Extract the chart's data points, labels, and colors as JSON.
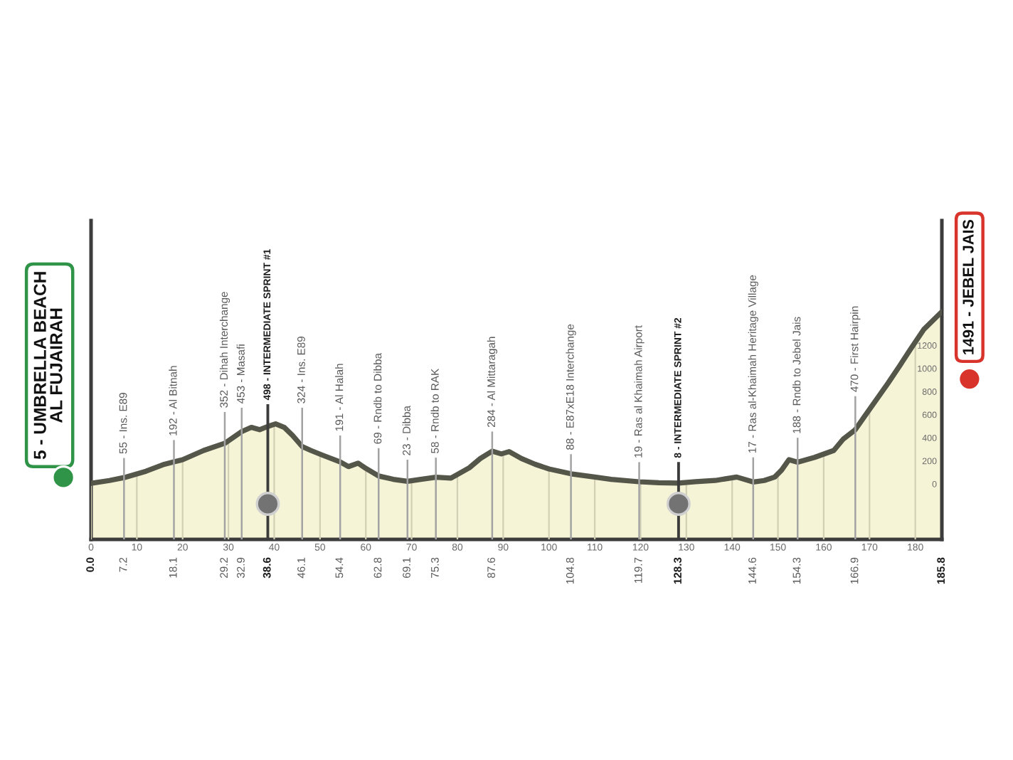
{
  "chart_data": {
    "type": "area",
    "color": "#f6f4d7",
    "x": [
      0,
      4,
      7.2,
      12,
      16,
      18.1,
      20,
      24.6,
      29.2,
      32.9,
      35,
      36.8,
      38.6,
      40.3,
      42.2,
      44,
      46.1,
      48,
      50.5,
      54.4,
      56.2,
      58.3,
      59.8,
      62.8,
      66,
      69.1,
      72,
      75.3,
      78.6,
      82.6,
      85,
      87.6,
      89.6,
      91.3,
      94,
      97,
      100,
      104.8,
      110,
      113.6,
      119.7,
      124,
      128.3,
      132,
      136.3,
      141,
      144.6,
      147,
      149.3,
      150.8,
      152.4,
      154.3,
      158,
      162.2,
      164.3,
      166.9,
      169,
      171.5,
      174,
      176.7,
      179,
      181.9,
      185.8
    ],
    "values": [
      5,
      30,
      55,
      110,
      170,
      192,
      210,
      290,
      352,
      453,
      490,
      470,
      498,
      520,
      490,
      420,
      324,
      290,
      250,
      191,
      150,
      180,
      140,
      69,
      40,
      23,
      40,
      58,
      50,
      140,
      220,
      284,
      260,
      280,
      220,
      170,
      130,
      88,
      60,
      40,
      19,
      10,
      8,
      20,
      30,
      60,
      17,
      30,
      60,
      120,
      210,
      188,
      230,
      290,
      390,
      470,
      590,
      730,
      870,
      1030,
      1170,
      1340,
      1491
    ],
    "xlim": [
      0,
      185.8
    ],
    "xticks": [
      0,
      10,
      20,
      30,
      40,
      50,
      60,
      70,
      80,
      90,
      100,
      110,
      120,
      130,
      140,
      150,
      160,
      170,
      180
    ],
    "x2lim": [
      0,
      185.8
    ],
    "x2ticks": [
      {
        "value": 0,
        "label": "0.0"
      },
      7.2,
      18.1,
      29.2,
      32.9,
      38.6,
      46.1,
      54.4,
      62.8,
      69.1,
      75.3,
      87.6,
      104.8,
      119.7,
      128.3,
      144.6,
      154.3,
      166.9,
      185.8
    ],
    "ylim": [
      -480,
      2280
    ],
    "yticks": [
      0,
      200,
      400,
      600,
      800,
      1000,
      1200
    ],
    "grid": "x",
    "bands": [
      {
        "axis": "y",
        "from": -480,
        "to": 0,
        "color": "#f6f4d7"
      }
    ],
    "ref_lines": [
      {
        "axis": "x",
        "value": 7.2,
        "label": "55 - Ins. E89",
        "color": "#a3a3a3"
      },
      {
        "axis": "x",
        "value": 18.1,
        "label": "192 - Al Bitnah",
        "color": "#a3a3a3"
      },
      {
        "axis": "x",
        "value": 29.2,
        "label": "352 - Dihah Interchange",
        "color": "#a3a3a3"
      },
      {
        "axis": "x",
        "value": 32.9,
        "label": "453 - Masafi",
        "color": "#a3a3a3"
      },
      {
        "axis": "x",
        "value": 38.6,
        "label": "498 - INTERMEDIATE SPRINT #1",
        "color": "#3b3b3b"
      },
      {
        "axis": "x",
        "value": 46.1,
        "label": "324 - Ins. E89",
        "color": "#a3a3a3"
      },
      {
        "axis": "x",
        "value": 54.4,
        "label": "191 - Al Halah",
        "color": "#a3a3a3"
      },
      {
        "axis": "x",
        "value": 62.8,
        "label": "69 - Rndb to Dibba",
        "color": "#a3a3a3"
      },
      {
        "axis": "x",
        "value": 69.1,
        "label": "23 - Dibba",
        "color": "#a3a3a3"
      },
      {
        "axis": "x",
        "value": 75.3,
        "label": "58 - Rndb to RAK",
        "color": "#a3a3a3"
      },
      {
        "axis": "x",
        "value": 87.6,
        "label": "284 - Al Mittaragah",
        "color": "#a3a3a3"
      },
      {
        "axis": "x",
        "value": 104.8,
        "label": "88 - E87xE18 Interchange",
        "color": "#a3a3a3"
      },
      {
        "axis": "x",
        "value": 119.7,
        "label": "19 - Ras al Khaimah Airport",
        "color": "#a3a3a3"
      },
      {
        "axis": "x",
        "value": 128.3,
        "label": "8 - INTERMEDIATE SPRINT #2",
        "color": "#3b3b3b"
      },
      {
        "axis": "x",
        "value": 144.6,
        "label": "17 - Ras al-Khaimah Heritage Village",
        "color": "#a3a3a3"
      },
      {
        "axis": "x",
        "value": 154.3,
        "label": "188 - Rndb to Jebel Jais",
        "color": "#a3a3a3"
      },
      {
        "axis": "x",
        "value": 166.9,
        "label": "470 - First Hairpin",
        "color": "#a3a3a3"
      }
    ],
    "annotations": [
      {
        "text": "5 - UMBRELLA BEACH\nAL FUJAIRAH",
        "x": 0,
        "y": 5
      },
      {
        "text": "1491 - JEBEL JAIS",
        "x": 185.8,
        "y": 1491
      }
    ]
  }
}
